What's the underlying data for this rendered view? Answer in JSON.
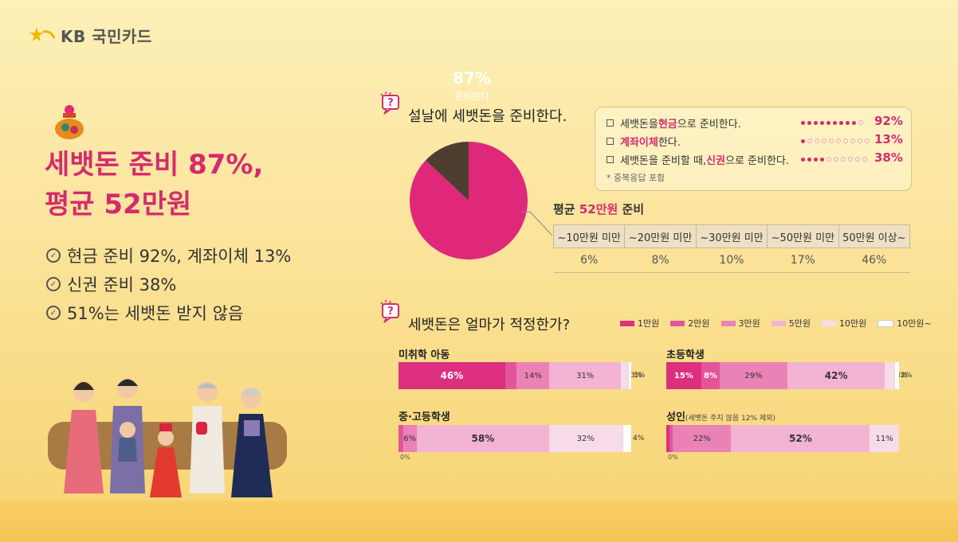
{
  "brand": {
    "name": "KB 국민카드"
  },
  "headline": {
    "line1": "세뱃돈 준비 87%,",
    "line2": "평균 52만원"
  },
  "bullets": [
    "현금 준비 92%, 계좌이체 13%",
    "신권 준비 38%",
    "51%는 세뱃돈 받지 않음"
  ],
  "q1": {
    "title": "설날에 세뱃돈을 준비한다."
  },
  "pie": {
    "pct": "87%",
    "label": "준비한다"
  },
  "methods": {
    "rows": [
      {
        "pre": "세뱃돈을 ",
        "hl": "현금",
        "post": "으로 준비한다.",
        "value": "92%"
      },
      {
        "pre": "",
        "hl": "계좌이체",
        "post": "한다.",
        "value": "13%"
      },
      {
        "pre": "세뱃돈을 준비할 때, ",
        "hl": "신권",
        "post": "으로 준비한다.",
        "value": "38%"
      }
    ],
    "note": "* 중복응답 포함"
  },
  "avg": {
    "title_pre": "평균 ",
    "title_hl": "52만원",
    "title_post": " 준비",
    "headers": [
      "~10만원 미만",
      "~20만원 미만",
      "~30만원 미만",
      "~50만원 미만",
      "50만원 이상~"
    ],
    "values": [
      "6%",
      "8%",
      "10%",
      "17%",
      "46%"
    ]
  },
  "q2": {
    "title": "세뱃돈은 얼마가 적정한가?"
  },
  "legend": [
    "1만원",
    "2만원",
    "3만원",
    "5만원",
    "10만원",
    "10만원~"
  ],
  "colors": {
    "accent": "#d42b6e",
    "pie_main": "#e0287a",
    "pie_rest": "#4e3e30",
    "seg": [
      "#dc2f80",
      "#e2559a",
      "#eb82b6",
      "#f3b3d2",
      "#f7dbe9",
      "#ffffff"
    ]
  },
  "groups": [
    {
      "title": "미취학 아동",
      "sub": "",
      "labels": [
        "46%",
        "5%",
        "14%",
        "31%",
        "3%",
        "1%"
      ]
    },
    {
      "title": "초등학생",
      "sub": "",
      "labels": [
        "15%",
        "8%",
        "29%",
        "42%",
        "4%",
        "2%"
      ]
    },
    {
      "title": "중·고등학생",
      "sub": "",
      "labels": [
        "2%",
        "6%",
        "58%",
        "32%",
        "4%"
      ],
      "zero": "0%"
    },
    {
      "title": "성인",
      "sub": "(세뱃돈 주지 않음 12% 제외)",
      "labels": [
        "1%",
        "1%",
        "22%",
        "52%",
        "11%"
      ],
      "zero": "0%"
    }
  ],
  "chart_data": [
    {
      "type": "pie",
      "title": "설날에 세뱃돈을 준비한다.",
      "categories": [
        "준비한다",
        ""
      ],
      "values": [
        87,
        13
      ]
    },
    {
      "type": "bar",
      "title": "세뱃돈을 준비하는 방법",
      "categories": [
        "현금",
        "계좌이체",
        "신권"
      ],
      "values": [
        92,
        13,
        38
      ]
    },
    {
      "type": "table",
      "title": "평균 52만원 준비",
      "categories": [
        "~10만원 미만",
        "~20만원 미만",
        "~30만원 미만",
        "~50만원 미만",
        "50만원 이상~"
      ],
      "values": [
        6,
        8,
        10,
        17,
        46
      ]
    },
    {
      "type": "bar",
      "title": "세뱃돈은 얼마가 적정한가?",
      "categories": [
        "미취학 아동",
        "초등학생",
        "중·고등학생",
        "성인"
      ],
      "series": [
        {
          "name": "1만원",
          "values": [
            46,
            15,
            0,
            1
          ]
        },
        {
          "name": "2만원",
          "values": [
            5,
            8,
            2,
            1
          ]
        },
        {
          "name": "3만원",
          "values": [
            14,
            29,
            6,
            22
          ]
        },
        {
          "name": "5만원",
          "values": [
            31,
            42,
            58,
            52
          ]
        },
        {
          "name": "10만원",
          "values": [
            3,
            4,
            32,
            11
          ]
        },
        {
          "name": "10만원~",
          "values": [
            1,
            2,
            4,
            0
          ]
        }
      ]
    }
  ]
}
